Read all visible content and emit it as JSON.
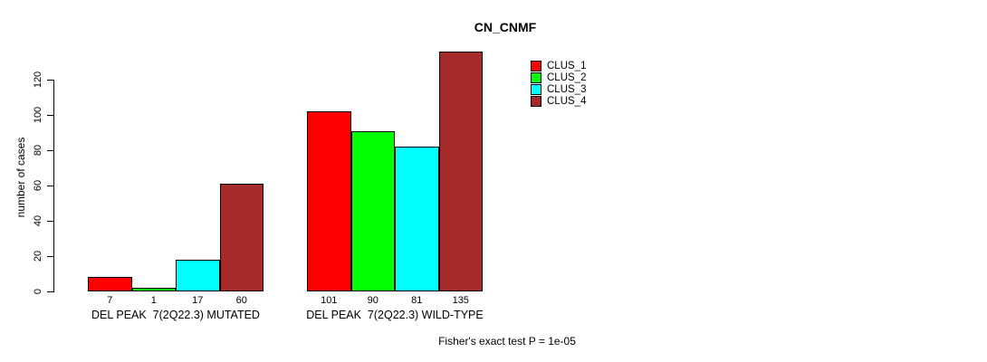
{
  "chart_data": {
    "type": "bar",
    "title": "CN_CNMF",
    "ylabel": "number of cases",
    "footnote": "Fisher's exact test P = 1e-05",
    "yticks": [
      0,
      20,
      40,
      60,
      80,
      100,
      120
    ],
    "ylim": [
      0,
      135
    ],
    "grid": false,
    "legend_position": "top-right",
    "categories": [
      "DEL PEAK  7(2Q22.3) MUTATED",
      "DEL PEAK  7(2Q22.3) WILD-TYPE"
    ],
    "series": [
      {
        "name": "CLUS_1",
        "color": "#FF0000",
        "values": [
          7,
          101
        ]
      },
      {
        "name": "CLUS_2",
        "color": "#00FF00",
        "values": [
          1,
          90
        ]
      },
      {
        "name": "CLUS_3",
        "color": "#00FFFF",
        "values": [
          17,
          81
        ]
      },
      {
        "name": "CLUS_4",
        "color": "#A52A2A",
        "values": [
          60,
          135
        ]
      }
    ],
    "bar_border_color": "#000000",
    "axis_color": "#000000",
    "background_color": "#FFFFFF"
  }
}
